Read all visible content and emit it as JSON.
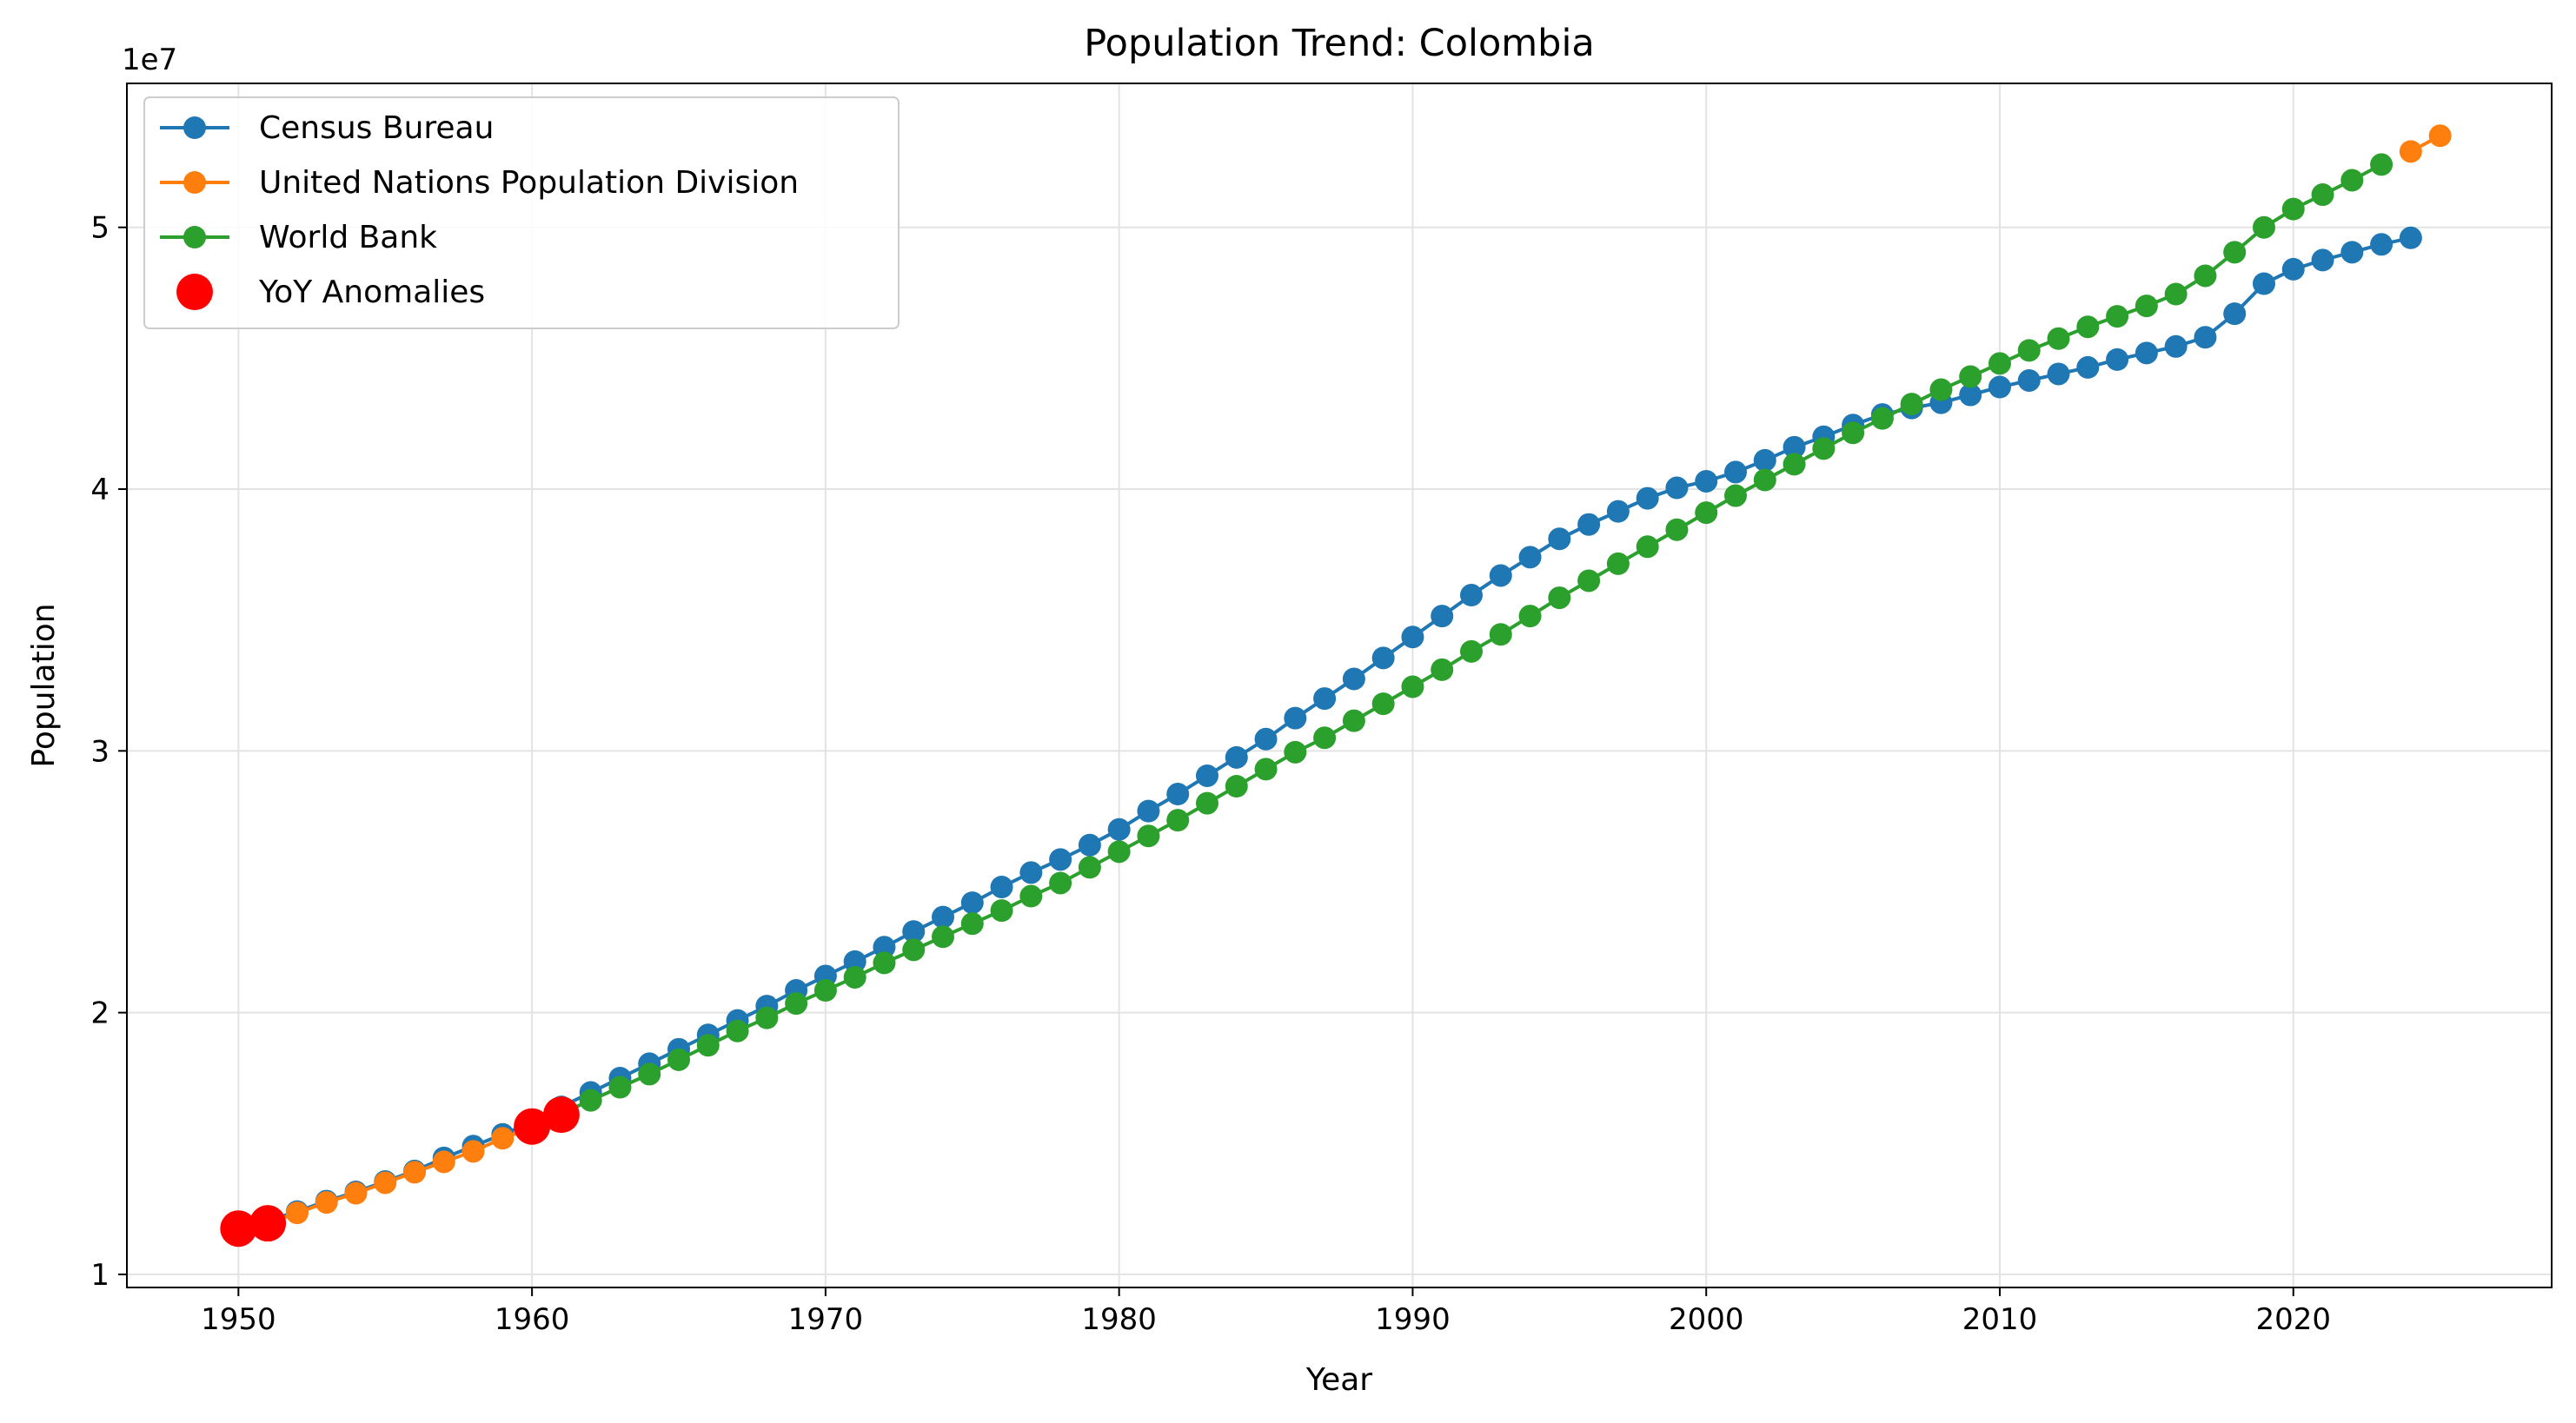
{
  "chart_data": {
    "type": "line",
    "title": "Population Trend: Colombia",
    "xlabel": "Year",
    "ylabel": "Population",
    "y_offset_label": "1e7",
    "xlim": [
      1946.2,
      2028.8
    ],
    "ylim": [
      9500000,
      55500000
    ],
    "x_ticks": [
      1950,
      1960,
      1970,
      1980,
      1990,
      2000,
      2010,
      2020
    ],
    "y_ticks": [
      10000000,
      20000000,
      30000000,
      40000000,
      50000000
    ],
    "y_tick_labels": [
      "1",
      "2",
      "3",
      "4",
      "5"
    ],
    "grid": true,
    "legend_position": "top-left",
    "series": [
      {
        "name": "Census Bureau",
        "color": "#1f77b4",
        "marker": "circle",
        "x": [
          1950,
          1951,
          1952,
          1953,
          1954,
          1955,
          1956,
          1957,
          1958,
          1959,
          1960,
          1961,
          1962,
          1963,
          1964,
          1965,
          1966,
          1967,
          1968,
          1969,
          1970,
          1971,
          1972,
          1973,
          1974,
          1975,
          1976,
          1977,
          1978,
          1979,
          1980,
          1981,
          1982,
          1983,
          1984,
          1985,
          1986,
          1987,
          1988,
          1989,
          1990,
          1991,
          1992,
          1993,
          1994,
          1995,
          1996,
          1997,
          1998,
          1999,
          2000,
          2001,
          2002,
          2003,
          2004,
          2005,
          2006,
          2007,
          2008,
          2009,
          2010,
          2011,
          2012,
          2013,
          2014,
          2015,
          2016,
          2017,
          2018,
          2019,
          2020,
          2021,
          2022,
          2023,
          2024
        ],
        "y": [
          11800000,
          12050000,
          12400000,
          12800000,
          13150000,
          13550000,
          13950000,
          14450000,
          14900000,
          15350000,
          15800000,
          16400000,
          16950000,
          17500000,
          18050000,
          18600000,
          19150000,
          19700000,
          20250000,
          20850000,
          21400000,
          21950000,
          22500000,
          23100000,
          23650000,
          24200000,
          24800000,
          25350000,
          25850000,
          26400000,
          27000000,
          27700000,
          28350000,
          29050000,
          29750000,
          30450000,
          31250000,
          32000000,
          32750000,
          33550000,
          34350000,
          35150000,
          35950000,
          36700000,
          37400000,
          38100000,
          38650000,
          39150000,
          39650000,
          40050000,
          40300000,
          40650000,
          41100000,
          41600000,
          42000000,
          42450000,
          42850000,
          43100000,
          43300000,
          43600000,
          43900000,
          44150000,
          44400000,
          44650000,
          44950000,
          45200000,
          45450000,
          45800000,
          46700000,
          47850000,
          48400000,
          48750000,
          49050000,
          49350000,
          49600000
        ]
      },
      {
        "name": "United Nations Population Division",
        "color": "#ff7f0e",
        "marker": "circle",
        "x": [
          1950,
          1951,
          1952,
          1953,
          1954,
          1955,
          1956,
          1957,
          1958,
          1959,
          1960,
          1961,
          2024,
          2025
        ],
        "y": [
          11750000,
          11950000,
          12350000,
          12750000,
          13100000,
          13500000,
          13900000,
          14300000,
          14700000,
          15200000,
          15600000,
          16100000,
          52900000,
          53500000
        ]
      },
      {
        "name": "World Bank",
        "color": "#2ca02c",
        "marker": "circle",
        "x": [
          1960,
          1961,
          1962,
          1963,
          1964,
          1965,
          1966,
          1967,
          1968,
          1969,
          1970,
          1971,
          1972,
          1973,
          1974,
          1975,
          1976,
          1977,
          1978,
          1979,
          1980,
          1981,
          1982,
          1983,
          1984,
          1985,
          1986,
          1987,
          1988,
          1989,
          1990,
          1991,
          1992,
          1993,
          1994,
          1995,
          1996,
          1997,
          1998,
          1999,
          2000,
          2001,
          2002,
          2003,
          2004,
          2005,
          2006,
          2007,
          2008,
          2009,
          2010,
          2011,
          2012,
          2013,
          2014,
          2015,
          2016,
          2017,
          2018,
          2019,
          2020,
          2021,
          2022,
          2023
        ],
        "y": [
          15650000,
          16150000,
          16650000,
          17150000,
          17650000,
          18200000,
          18750000,
          19300000,
          19800000,
          20350000,
          20850000,
          21350000,
          21900000,
          22400000,
          22900000,
          23400000,
          23900000,
          24450000,
          24950000,
          25550000,
          26150000,
          26750000,
          27350000,
          28000000,
          28650000,
          29300000,
          29950000,
          30500000,
          31150000,
          31800000,
          32450000,
          33100000,
          33800000,
          34450000,
          35150000,
          35850000,
          36500000,
          37150000,
          37800000,
          38450000,
          39100000,
          39750000,
          40350000,
          40950000,
          41550000,
          42150000,
          42700000,
          43250000,
          43800000,
          44300000,
          44800000,
          45300000,
          45750000,
          46200000,
          46600000,
          47000000,
          47450000,
          48150000,
          49050000,
          50000000,
          50700000,
          51250000,
          51800000,
          52400000
        ]
      },
      {
        "name": "YoY Anomalies",
        "color": "#ff0000",
        "marker": "circle-large",
        "points": [
          {
            "x": 1950,
            "y": 11750000
          },
          {
            "x": 1951,
            "y": 11950000
          },
          {
            "x": 1960,
            "y": 15650000
          },
          {
            "x": 1961,
            "y": 16100000
          }
        ]
      }
    ]
  }
}
